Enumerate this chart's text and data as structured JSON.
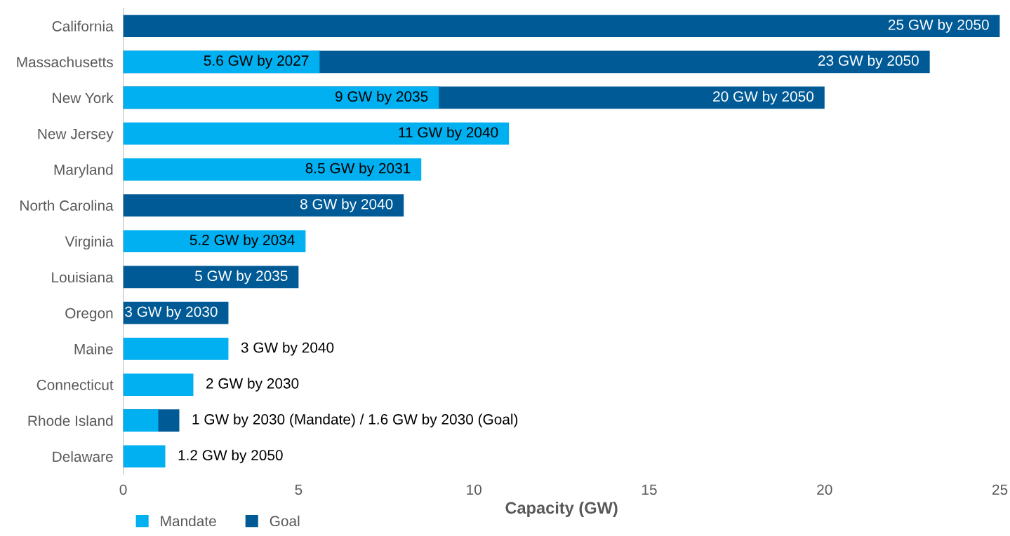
{
  "chart_data": {
    "type": "bar",
    "orientation": "horizontal",
    "xlabel": "Capacity (GW)",
    "categories": [
      "California",
      "Massachusetts",
      "New York",
      "New Jersey",
      "Maryland",
      "North Carolina",
      "Virginia",
      "Louisiana",
      "Oregon",
      "Maine",
      "Connecticut",
      "Rhode Island",
      "Delaware"
    ],
    "series": [
      {
        "name": "Mandate",
        "color": "#00b0f0",
        "values": [
          null,
          5.6,
          9,
          11,
          8.5,
          null,
          5.2,
          null,
          null,
          3,
          2,
          1,
          1.2
        ],
        "value_labels": [
          null,
          "5.6 GW by 2027",
          "9 GW by 2035",
          "11 GW by 2040",
          "8.5 GW by 2031",
          null,
          "5.2 GW by 2034",
          null,
          null,
          "3 GW by 2040",
          "2 GW by 2030",
          null,
          "1.2 GW by 2050"
        ]
      },
      {
        "name": "Goal",
        "color": "#005a96",
        "values": [
          25,
          23,
          20,
          null,
          null,
          8,
          null,
          5,
          3,
          null,
          null,
          1.6,
          null
        ],
        "value_labels": [
          "25 GW by 2050",
          "23 GW by 2050",
          "20 GW by 2050",
          null,
          null,
          "8 GW by 2040",
          null,
          "5 GW by 2035",
          "3 GW by 2030",
          null,
          null,
          "1 GW by 2030 (Mandate) / 1.6 GW by 2030 (Goal)",
          null
        ]
      }
    ],
    "xlim": [
      0,
      25
    ],
    "xticks": [
      0,
      5,
      10,
      15,
      20,
      25
    ],
    "grid": false,
    "legend": "bottom left"
  }
}
